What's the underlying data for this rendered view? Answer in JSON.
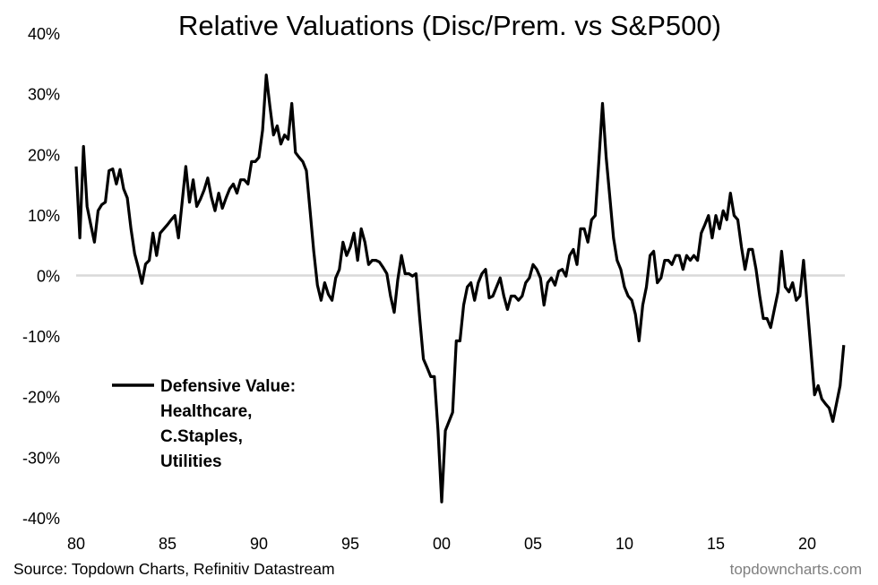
{
  "chart_data": {
    "type": "line",
    "title": "Relative Valuations (Disc/Prem. vs S&P500)",
    "xlabel": "",
    "ylabel": "",
    "xlim": [
      1980,
      2022.4
    ],
    "ylim": [
      -40,
      40
    ],
    "grid": false,
    "zero_line": true,
    "y_ticks": [
      "40%",
      "30%",
      "20%",
      "10%",
      "0%",
      "-10%",
      "-20%",
      "-30%",
      "-40%"
    ],
    "y_tick_values": [
      40,
      30,
      20,
      10,
      0,
      -10,
      -20,
      -30,
      -40
    ],
    "x_ticks": [
      "80",
      "85",
      "90",
      "95",
      "00",
      "05",
      "10",
      "15",
      "20"
    ],
    "x_tick_values": [
      1980,
      1985,
      1990,
      1995,
      2000,
      2005,
      2010,
      2015,
      2020
    ],
    "legend": {
      "placement": "left",
      "lines": [
        "Defensive Value:",
        "Healthcare,",
        "C.Staples,",
        "Utilities"
      ]
    },
    "series": [
      {
        "name": "Defensive Value: Healthcare, C.Staples, Utilities",
        "color": "#000000",
        "x": [
          1980,
          1980.2,
          1980.4,
          1980.6,
          1980.8,
          1981,
          1981.2,
          1981.4,
          1981.6,
          1981.8,
          1982,
          1982.2,
          1982.4,
          1982.6,
          1982.8,
          1983,
          1983.2,
          1983.4,
          1983.6,
          1983.8,
          1984,
          1984.2,
          1984.4,
          1984.6,
          1984.8,
          1985,
          1985.2,
          1985.4,
          1985.6,
          1985.8,
          1986,
          1986.2,
          1986.4,
          1986.6,
          1986.8,
          1987,
          1987.2,
          1987.4,
          1987.6,
          1987.8,
          1988,
          1988.2,
          1988.4,
          1988.6,
          1988.8,
          1989,
          1989.2,
          1989.4,
          1989.6,
          1989.8,
          1990,
          1990.2,
          1990.4,
          1990.6,
          1990.8,
          1991,
          1991.2,
          1991.4,
          1991.6,
          1991.8,
          1992,
          1992.2,
          1992.4,
          1992.6,
          1992.8,
          1993,
          1993.2,
          1993.4,
          1993.6,
          1993.8,
          1994,
          1994.2,
          1994.4,
          1994.6,
          1994.8,
          1995,
          1995.2,
          1995.4,
          1995.6,
          1995.8,
          1996,
          1996.2,
          1996.4,
          1996.6,
          1996.8,
          1997,
          1997.2,
          1997.4,
          1997.6,
          1997.8,
          1998,
          1998.2,
          1998.4,
          1998.6,
          1998.8,
          1999,
          1999.2,
          1999.4,
          1999.6,
          1999.8,
          2000,
          2000.2,
          2000.4,
          2000.6,
          2000.8,
          2001,
          2001.2,
          2001.4,
          2001.6,
          2001.8,
          2002,
          2002.2,
          2002.4,
          2002.6,
          2002.8,
          2003,
          2003.2,
          2003.4,
          2003.6,
          2003.8,
          2004,
          2004.2,
          2004.4,
          2004.6,
          2004.8,
          2005,
          2005.2,
          2005.4,
          2005.6,
          2005.8,
          2006,
          2006.2,
          2006.4,
          2006.6,
          2006.8,
          2007,
          2007.2,
          2007.4,
          2007.6,
          2007.8,
          2008,
          2008.2,
          2008.4,
          2008.6,
          2008.8,
          2009,
          2009.2,
          2009.4,
          2009.6,
          2009.8,
          2010,
          2010.2,
          2010.4,
          2010.6,
          2010.8,
          2011,
          2011.2,
          2011.4,
          2011.6,
          2011.8,
          2012,
          2012.2,
          2012.4,
          2012.6,
          2012.8,
          2013,
          2013.2,
          2013.4,
          2013.6,
          2013.8,
          2014,
          2014.2,
          2014.4,
          2014.6,
          2014.8,
          2015,
          2015.2,
          2015.4,
          2015.6,
          2015.8,
          2016,
          2016.2,
          2016.4,
          2016.6,
          2016.8,
          2017,
          2017.2,
          2017.4,
          2017.6,
          2017.8,
          2018,
          2018.2,
          2018.4,
          2018.6,
          2018.8,
          2019,
          2019.2,
          2019.4,
          2019.6,
          2019.8,
          2020,
          2020.2,
          2020.4,
          2020.6,
          2020.8,
          2021,
          2021.2,
          2021.4,
          2021.6,
          2021.8,
          2022
        ],
        "y": [
          18.0,
          6.2,
          21.3,
          11.4,
          8.4,
          5.5,
          10.7,
          11.7,
          12.1,
          17.3,
          17.6,
          15.1,
          17.5,
          14.3,
          12.8,
          7.7,
          3.6,
          1.3,
          -1.3,
          1.9,
          2.5,
          7.0,
          3.3,
          7.0,
          7.7,
          8.4,
          9.2,
          9.9,
          6.2,
          12.1,
          18.0,
          12.1,
          15.8,
          11.4,
          12.6,
          14.1,
          16.1,
          12.9,
          10.7,
          13.6,
          11.1,
          12.8,
          14.3,
          15.1,
          13.6,
          15.8,
          15.8,
          15.1,
          18.8,
          18.8,
          19.5,
          24.0,
          33.1,
          28.0,
          23.2,
          24.7,
          21.7,
          23.2,
          22.5,
          28.4,
          20.3,
          19.5,
          18.8,
          17.3,
          10.7,
          4.0,
          -1.6,
          -4.1,
          -1.2,
          -3.1,
          -4.1,
          -0.4,
          1.0,
          5.5,
          3.3,
          4.7,
          7.0,
          2.5,
          7.7,
          5.5,
          1.8,
          2.5,
          2.5,
          2.2,
          1.3,
          0.3,
          -3.4,
          -6.1,
          -0.7,
          3.3,
          0.3,
          0.3,
          -0.1,
          0.3,
          -7.1,
          -13.8,
          -15.2,
          -16.7,
          -16.7,
          -25.6,
          -37.4,
          -25.6,
          -24.1,
          -22.6,
          -10.8,
          -10.8,
          -4.9,
          -1.9,
          -1.2,
          -4.1,
          -1.2,
          0.3,
          1.0,
          -3.7,
          -3.4,
          -1.9,
          -0.4,
          -3.4,
          -5.6,
          -3.4,
          -3.4,
          -4.1,
          -3.4,
          -1.2,
          -0.4,
          1.8,
          1.0,
          -0.4,
          -4.9,
          -1.2,
          -0.4,
          -1.6,
          0.7,
          1.0,
          -0.1,
          3.3,
          4.3,
          1.8,
          7.7,
          7.7,
          5.5,
          9.2,
          9.9,
          18.8,
          28.4,
          19.5,
          12.9,
          6.2,
          2.5,
          1.0,
          -1.9,
          -3.4,
          -4.1,
          -6.4,
          -10.8,
          -4.9,
          -1.9,
          3.3,
          4.0,
          -1.2,
          -0.4,
          2.5,
          2.5,
          1.8,
          3.3,
          3.3,
          1.0,
          3.3,
          2.5,
          3.3,
          2.5,
          7.0,
          8.4,
          9.9,
          6.2,
          9.9,
          7.7,
          10.7,
          9.2,
          13.6,
          9.9,
          9.2,
          4.7,
          1.0,
          4.3,
          4.3,
          1.0,
          -3.4,
          -7.1,
          -7.1,
          -8.6,
          -5.6,
          -2.7,
          4.0,
          -1.9,
          -2.7,
          -1.2,
          -4.1,
          -3.4,
          2.5,
          -4.9,
          -12.3,
          -19.7,
          -18.2,
          -20.4,
          -21.2,
          -21.9,
          -24.1,
          -21.2,
          -18.2,
          -11.5
        ]
      }
    ],
    "zero_line_color": "#d9d9d9"
  },
  "footer": {
    "source": "Source: Topdown Charts, Refinitiv Datastream",
    "brand": "topdowncharts.com"
  }
}
